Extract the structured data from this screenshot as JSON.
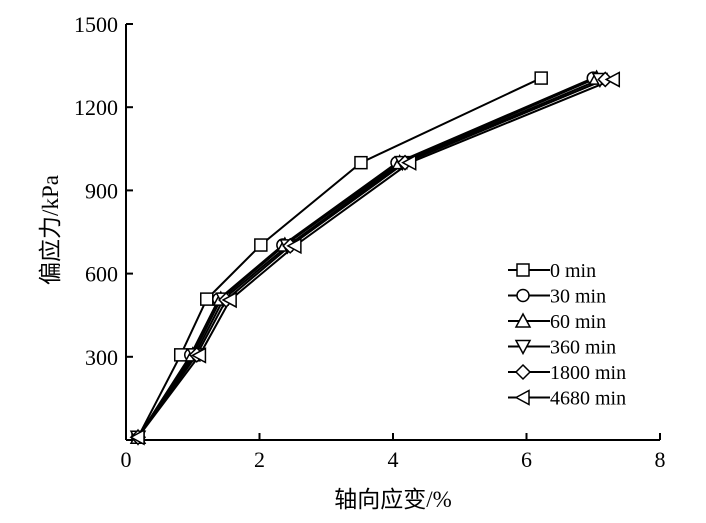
{
  "chart_data": {
    "type": "line",
    "title": "",
    "xlabel": "轴向应变/%",
    "ylabel": "偏应力/kPa",
    "xlim": [
      0,
      8
    ],
    "ylim": [
      0,
      1500
    ],
    "xticks": [
      "0",
      "2",
      "4",
      "6",
      "8"
    ],
    "xtick_values": [
      0,
      2,
      4,
      6,
      8
    ],
    "yticks": [
      "300",
      "600",
      "900",
      "1200",
      "1500"
    ],
    "ytick_values": [
      300,
      600,
      900,
      1200,
      1500
    ],
    "grid": false,
    "legend_position": "bottom-right",
    "series": [
      {
        "name": "0 min",
        "marker": "square",
        "x": [
          0.18,
          0.82,
          1.21,
          2.02,
          3.52,
          6.22
        ],
        "y": [
          10,
          307,
          508,
          703,
          1000,
          1305
        ]
      },
      {
        "name": "30 min",
        "marker": "circle",
        "x": [
          0.18,
          0.97,
          1.39,
          2.35,
          4.06,
          7.0
        ],
        "y": [
          10,
          307,
          508,
          703,
          1000,
          1305
        ]
      },
      {
        "name": "60 min",
        "marker": "triangle-up",
        "x": [
          0.18,
          1.0,
          1.42,
          2.38,
          4.1,
          7.05
        ],
        "y": [
          10,
          307,
          508,
          703,
          1000,
          1305
        ]
      },
      {
        "name": "360 min",
        "marker": "triangle-down",
        "x": [
          0.18,
          1.03,
          1.46,
          2.42,
          4.14,
          7.1
        ],
        "y": [
          10,
          307,
          508,
          700,
          1000,
          1300
        ]
      },
      {
        "name": "1800 min",
        "marker": "diamond",
        "x": [
          0.18,
          1.06,
          1.5,
          2.46,
          4.18,
          7.18
        ],
        "y": [
          10,
          307,
          505,
          700,
          1000,
          1300
        ]
      },
      {
        "name": "4680 min",
        "marker": "triangle-left",
        "x": [
          0.18,
          1.1,
          1.56,
          2.53,
          4.25,
          7.3
        ],
        "y": [
          10,
          305,
          505,
          700,
          1000,
          1300
        ]
      }
    ]
  }
}
